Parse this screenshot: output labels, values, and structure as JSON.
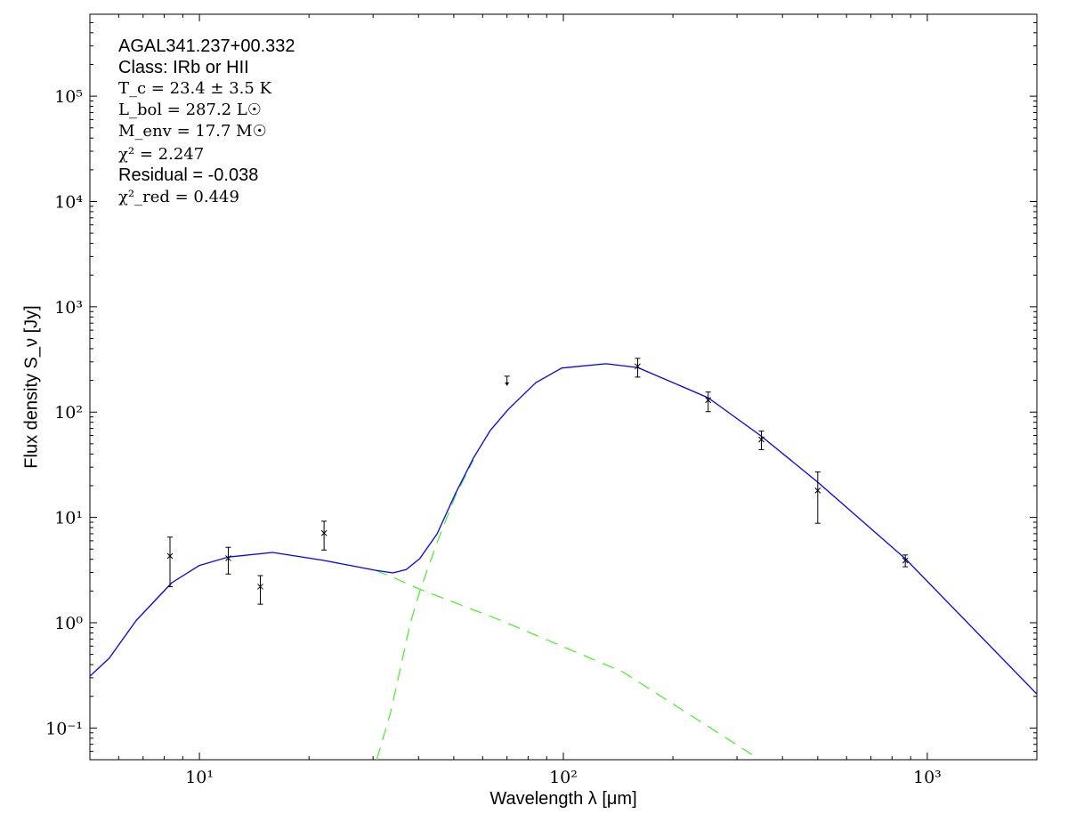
{
  "chart_data": {
    "type": "scatter",
    "xlabel": "Wavelength λ [μm]",
    "ylabel": "Flux density S_ν [Jy]",
    "xscale": "log",
    "yscale": "log",
    "xlim": [
      5,
      2000
    ],
    "ylim": [
      0.05,
      600000
    ],
    "grid": false,
    "x_ticks": [
      10,
      100,
      1000
    ],
    "x_tick_labels": [
      "10¹",
      "10²",
      "10³"
    ],
    "y_ticks": [
      0.1,
      1,
      10,
      100,
      1000,
      10000,
      100000
    ],
    "y_tick_labels": [
      "10⁻¹",
      "10⁰",
      "10¹",
      "10²",
      "10³",
      "10⁴",
      "10⁵"
    ],
    "annotations": {
      "source": "AGAL341.237+00.332",
      "class": "Class: IRb or HII",
      "tc": "T_c = 23.4 ± 3.5 K",
      "lbol": "L_bol = 287.2 L☉",
      "menv": "M_env = 17.7 M☉",
      "chi2": "χ² = 2.247",
      "residual": "Residual = -0.038",
      "chi2red": "χ²_red = 0.449"
    },
    "measurements": [
      {
        "x": 8.3,
        "y": 4.3,
        "ylo": 2.2,
        "yhi": 6.5
      },
      {
        "x": 12,
        "y": 4.1,
        "ylo": 2.9,
        "yhi": 5.2
      },
      {
        "x": 14.7,
        "y": 2.2,
        "ylo": 1.5,
        "yhi": 2.8
      },
      {
        "x": 22,
        "y": 7.1,
        "ylo": 4.9,
        "yhi": 9.2
      },
      {
        "x": 160,
        "y": 272,
        "ylo": 215,
        "yhi": 324
      },
      {
        "x": 250,
        "y": 130,
        "ylo": 101,
        "yhi": 155
      },
      {
        "x": 350,
        "y": 55,
        "ylo": 44,
        "yhi": 66
      },
      {
        "x": 500,
        "y": 18,
        "ylo": 8.8,
        "yhi": 27
      },
      {
        "x": 870,
        "y": 3.9,
        "ylo": 3.4,
        "yhi": 4.4
      }
    ],
    "upper_limits": [
      {
        "x": 70,
        "y": 215
      }
    ],
    "series": [
      {
        "style": "solid",
        "color": "#0000ff",
        "x": [
          5,
          5.65,
          6.7,
          8.4,
          10,
          12,
          15.9,
          22,
          30.4,
          34,
          37,
          40.3,
          45,
          50.5,
          56.6,
          63,
          70.7,
          84,
          99,
          131,
          160,
          250,
          350,
          500,
          870,
          2000
        ],
        "y": [
          0.31,
          0.46,
          1.05,
          2.4,
          3.5,
          4.2,
          4.65,
          3.9,
          3.15,
          2.97,
          3.2,
          4.06,
          7,
          16.8,
          36.6,
          67,
          107,
          190,
          262,
          288,
          265,
          137,
          59,
          21.6,
          4.06,
          0.21
        ]
      },
      {
        "style": "dashed",
        "color": "#44ee22",
        "x": [
          30.4,
          34,
          40,
          67,
          146,
          330
        ],
        "y": [
          3.15,
          2.7,
          2.1,
          1.06,
          0.34,
          0.056
        ]
      },
      {
        "style": "dashed",
        "color": "#44ee22",
        "x": [
          30.7,
          33.5,
          38,
          40.3,
          45,
          50.5,
          56.6
        ],
        "y": [
          0.05,
          0.14,
          1.0,
          1.98,
          5.8,
          16,
          35
        ]
      }
    ]
  }
}
